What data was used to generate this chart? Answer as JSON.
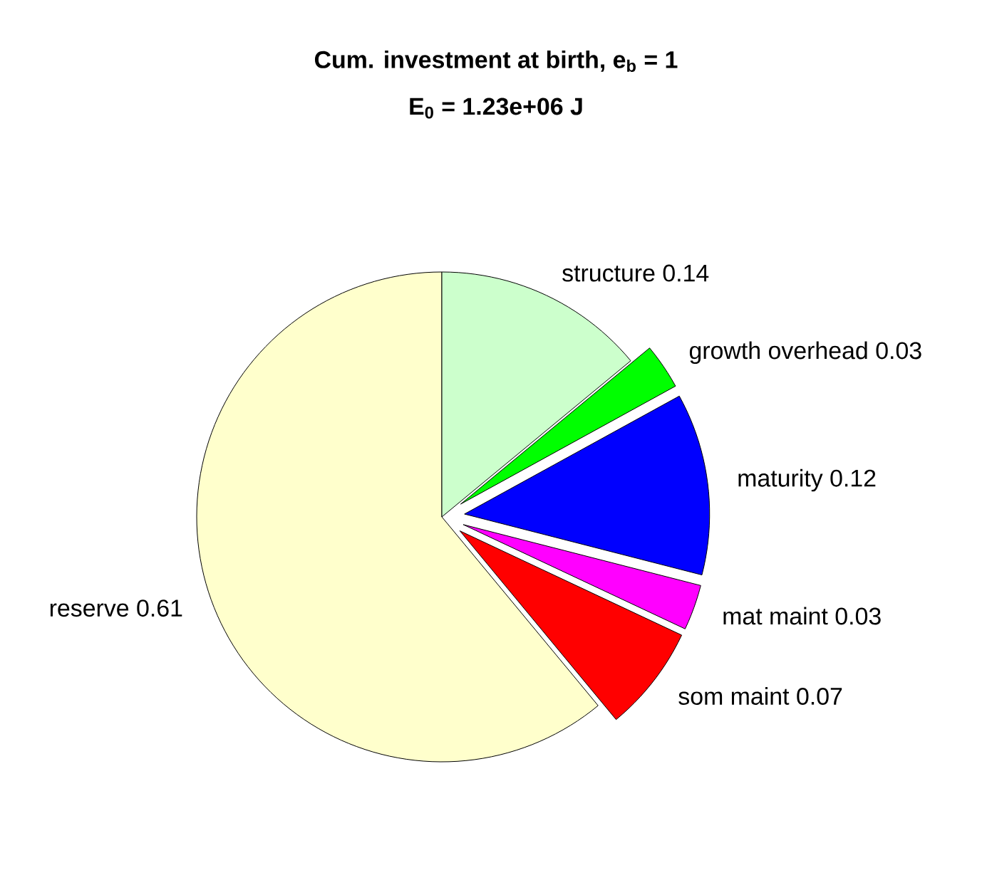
{
  "chart_data": {
    "type": "pie",
    "title": "**Cum. investment at birth, e$_{b}$ = 1**",
    "subtitle": "**E$_{0}$ = 1.23e+06 J**",
    "categories": [
      "reserve",
      "som maint",
      "mat maint",
      "maturity",
      "growth overhead",
      "structure"
    ],
    "values": [
      0.61,
      0.07,
      0.03,
      0.12,
      0.03,
      0.14
    ],
    "colors": [
      "#ffffcc",
      "#ff0000",
      "#ff00ff",
      "#0000ff",
      "#00ff00",
      "#ccffcc"
    ],
    "data_labels": true
  }
}
